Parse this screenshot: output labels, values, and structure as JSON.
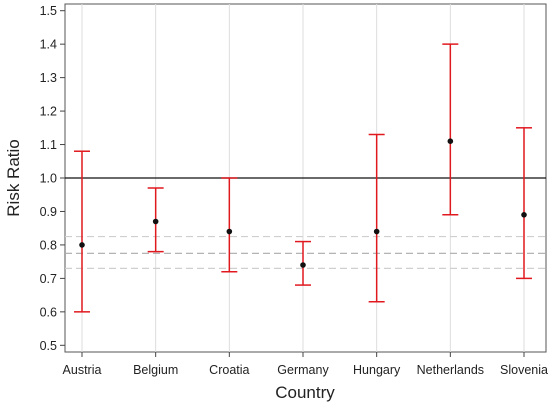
{
  "chart_data": {
    "type": "errorbar",
    "title": "",
    "xlabel": "Country",
    "ylabel": "Risk Ratio",
    "ylim": [
      0.48,
      1.52
    ],
    "yticks": [
      0.5,
      0.6,
      0.7,
      0.8,
      0.9,
      1.0,
      1.1,
      1.2,
      1.3,
      1.4,
      1.5
    ],
    "ytick_labels": [
      "0.5",
      "0.6",
      "0.7",
      "0.8",
      "0.9",
      "1.0",
      "1.1",
      "1.2",
      "1.3",
      "1.4",
      "1.5"
    ],
    "categories": [
      "Austria",
      "Belgium",
      "Croatia",
      "Germany",
      "Hungary",
      "Netherlands",
      "Slovenia"
    ],
    "estimates": [
      0.8,
      0.87,
      0.84,
      0.74,
      0.84,
      1.11,
      0.89
    ],
    "lower": [
      0.6,
      0.78,
      0.72,
      0.68,
      0.63,
      0.89,
      0.7
    ],
    "upper": [
      1.08,
      0.97,
      1.0,
      0.81,
      1.13,
      1.4,
      1.15
    ],
    "reference_line": 1.0,
    "pooled": {
      "estimate": 0.775,
      "lower": 0.73,
      "upper": 0.825
    },
    "grid": {
      "vertical": true,
      "horizontal": false
    },
    "legend": "none",
    "colors": {
      "interval": "#e0191f",
      "point": "#111111",
      "reference": "#111111",
      "pooled_mean": "#aaaaaa",
      "pooled_ci": "#cfcfcf",
      "grid": "#dddddd",
      "axis": "#444444"
    }
  }
}
